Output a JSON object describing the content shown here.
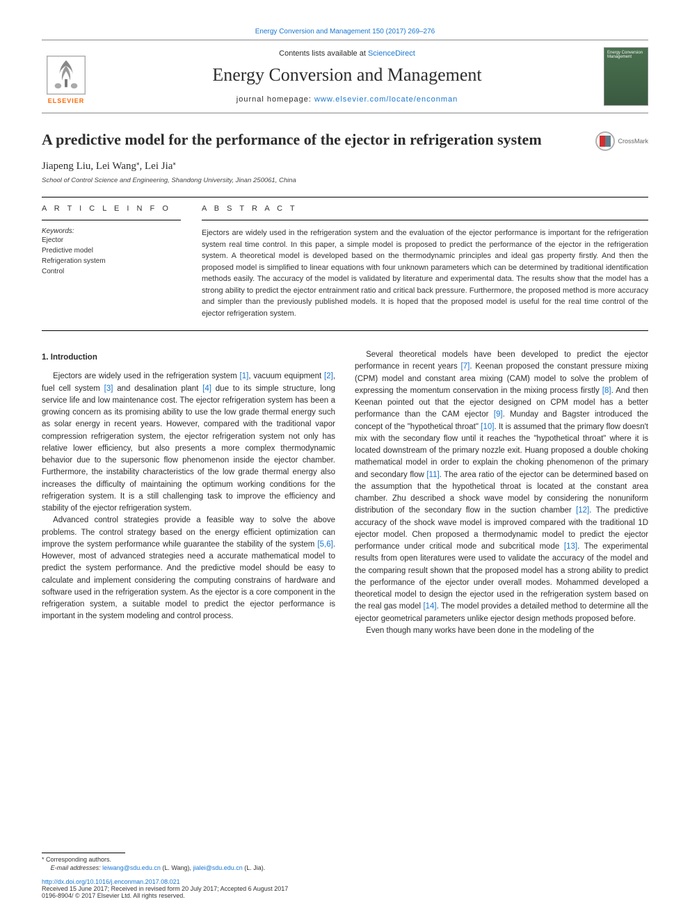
{
  "top_link": "Energy Conversion and Management 150 (2017) 269–276",
  "header": {
    "contents_prefix": "Contents lists available at ",
    "contents_link": "ScienceDirect",
    "journal": "Energy Conversion and Management",
    "homepage_prefix": "journal homepage: ",
    "homepage_url": "www.elsevier.com/locate/enconman",
    "publisher": "ELSEVIER",
    "cover_text": "Energy Conversion Management"
  },
  "crossmark": "CrossMark",
  "title": "A predictive model for the performance of the ejector in refrigeration system",
  "authors_html": "Jiapeng Liu, Lei Wang*, Lei Jia*",
  "authors": [
    {
      "name": "Jiapeng Liu",
      "corr": false
    },
    {
      "name": "Lei Wang",
      "corr": true
    },
    {
      "name": "Lei Jia",
      "corr": true
    }
  ],
  "affiliation": "School of Control Science and Engineering, Shandong University, Jinan 250061, China",
  "article_info_head": "A R T I C L E  I N F O",
  "abstract_head": "A B S T R A C T",
  "keywords_label": "Keywords:",
  "keywords": [
    "Ejector",
    "Predictive model",
    "Refrigeration system",
    "Control"
  ],
  "abstract": "Ejectors are widely used in the refrigeration system and the evaluation of the ejector performance is important for the refrigeration system real time control. In this paper, a simple model is proposed to predict the performance of the ejector in the refrigeration system. A theoretical model is developed based on the thermodynamic principles and ideal gas property firstly. And then the proposed model is simplified to linear equations with four unknown parameters which can be determined by traditional identification methods easily. The accuracy of the model is validated by literature and experimental data. The results show that the model has a strong ability to predict the ejector entrainment ratio and critical back pressure. Furthermore, the proposed method is more accuracy and simpler than the previously published models. It is hoped that the proposed model is useful for the real time control of the ejector refrigeration system.",
  "section1_heading": "1. Introduction",
  "para1": "Ejectors are widely used in the refrigeration system [1], vacuum equipment [2], fuel cell system [3] and desalination plant [4] due to its simple structure, long service life and low maintenance cost. The ejector refrigeration system has been a growing concern as its promising ability to use the low grade thermal energy such as solar energy in recent years. However, compared with the traditional vapor compression refrigeration system, the ejector refrigeration system not only has relative lower efficiency, but also presents a more complex thermodynamic behavior due to the supersonic flow phenomenon inside the ejector chamber. Furthermore, the instability characteristics of the low grade thermal energy also increases the difficulty of maintaining the optimum working conditions for the refrigeration system. It is a still challenging task to improve the efficiency and stability of the ejector refrigeration system.",
  "para2": "Advanced control strategies provide a feasible way to solve the above problems. The control strategy based on the energy efficient optimization can improve the system performance while guarantee the stability of the system [5,6]. However, most of advanced strategies need a accurate mathematical model to predict the system performance. And the predictive model should be easy to calculate and implement considering the computing constrains of hardware and software used in the refrigeration system. As the ejector is a core component in the refrigeration system, a suitable model to predict the ejector performance is important in the system modeling and control process.",
  "para3": "Several theoretical models have been developed to predict the ejector performance in recent years [7]. Keenan proposed the constant pressure mixing (CPM) model and constant area mixing (CAM) model to solve the problem of expressing the momentum conservation in the mixing process firstly [8]. And then Keenan pointed out that the ejector designed on CPM model has a better performance than the CAM ejector [9]. Munday and Bagster introduced the concept of the \"hypothetical throat\" [10]. It is assumed that the primary flow doesn't mix with the secondary flow until it reaches the \"hypothetical throat\" where it is located downstream of the primary nozzle exit. Huang proposed a double choking mathematical model in order to explain the choking phenomenon of the primary and secondary flow [11]. The area ratio of the ejector can be determined based on the assumption that the hypothetical throat is located at the constant area chamber. Zhu described a shock wave model by considering the nonuniform distribution of the secondary flow in the suction chamber [12]. The predictive accuracy of the shock wave model is improved compared with the traditional 1D ejector model. Chen proposed a thermodynamic model to predict the ejector performance under critical mode and subcritical mode [13]. The experimental results from open literatures were used to validate the accuracy of the model and the comparing result shown that the proposed model has a strong ability to predict the performance of the ejector under overall modes. Mohammed developed a theoretical model to design the ejector used in the refrigeration system based on the real gas model [14]. The model provides a detailed method to determine all the ejector geometrical parameters unlike ejector design methods proposed before.",
  "para4": "Even though many works have been done in the modeling of the",
  "refs": [
    "[1]",
    "[2]",
    "[3]",
    "[4]",
    "[5,6]",
    "[7]",
    "[8]",
    "[9]",
    "[10]",
    "[11]",
    "[12]",
    "[13]",
    "[14]"
  ],
  "footer": {
    "corr": "* Corresponding authors.",
    "email_label": "E-mail addresses:",
    "emails": [
      {
        "addr": "leiwang@sdu.edu.cn",
        "who": "(L. Wang)"
      },
      {
        "addr": "jialei@sdu.edu.cn",
        "who": "(L. Jia)"
      }
    ],
    "doi": "http://dx.doi.org/10.1016/j.enconman.2017.08.021",
    "received": "Received 15 June 2017; Received in revised form 20 July 2017; Accepted 6 August 2017",
    "copyright": "0196-8904/ © 2017 Elsevier Ltd. All rights reserved."
  },
  "colors": {
    "link": "#1976d2",
    "elsevier_orange": "#ff6600",
    "text": "#2d2d2d",
    "cover_bg": "#3a5a40"
  }
}
